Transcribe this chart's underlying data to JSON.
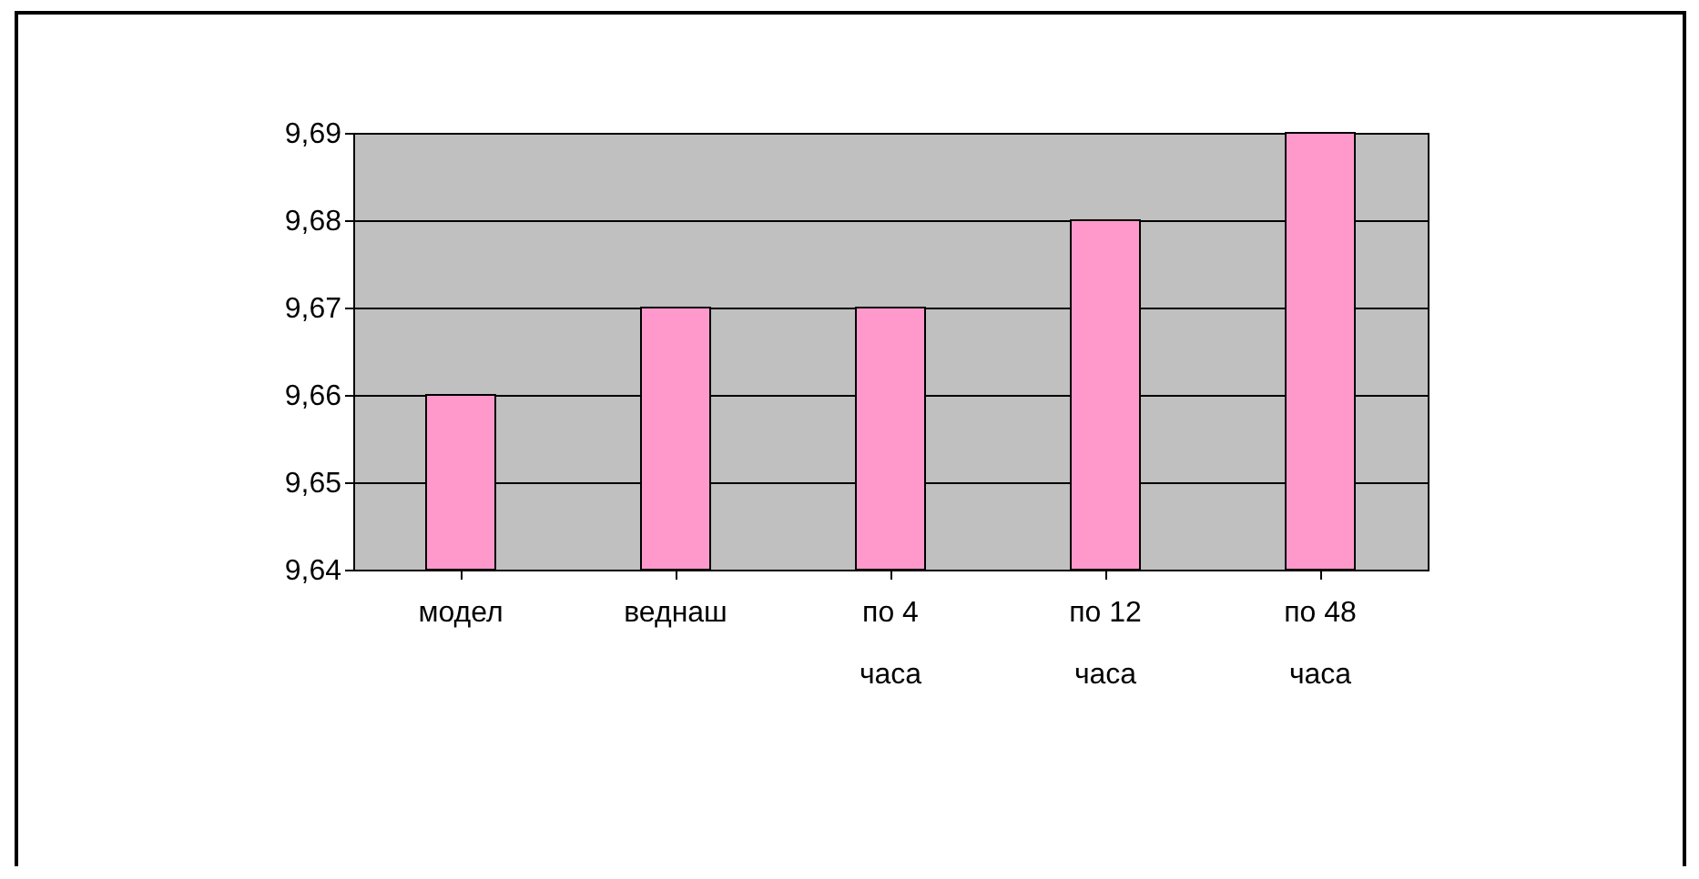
{
  "chart_data": {
    "type": "bar",
    "categories": [
      "модел",
      "веднаш",
      "по 4 часа",
      "по 12 часа",
      "по 48 часа"
    ],
    "values": [
      9.66,
      9.67,
      9.67,
      9.68,
      9.69
    ],
    "color": "#ff99cc",
    "ylim": [
      9.64,
      9.69
    ],
    "yticks": [
      {
        "value": 9.64,
        "label": "9,64"
      },
      {
        "value": 9.65,
        "label": "9,65"
      },
      {
        "value": 9.66,
        "label": "9,66"
      },
      {
        "value": 9.67,
        "label": "9,67"
      },
      {
        "value": 9.68,
        "label": "9,68"
      },
      {
        "value": 9.69,
        "label": "9,69"
      }
    ],
    "grid": "y"
  }
}
